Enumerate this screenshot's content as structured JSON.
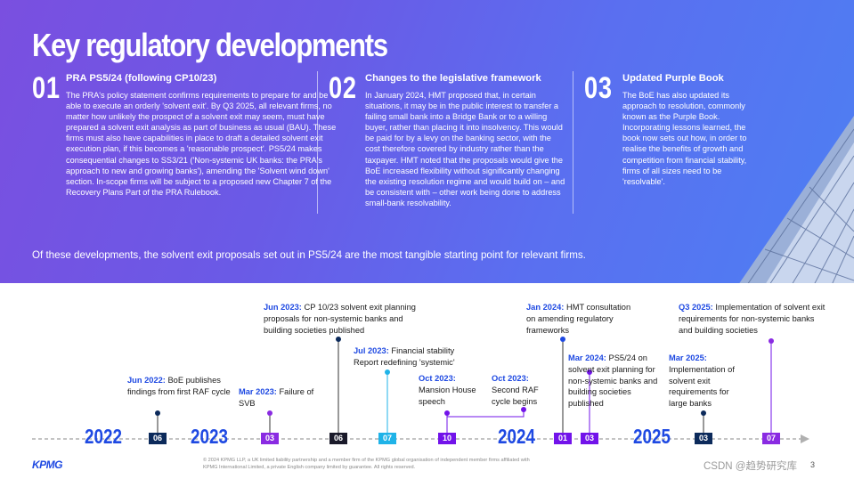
{
  "title": "Key regulatory developments",
  "columns": [
    {
      "num": "01",
      "heading": "PRA PS5/24 (following CP10/23)",
      "text": "The PRA's policy statement confirms requirements to prepare for and be able to execute an orderly 'solvent exit'. By Q3 2025, all relevant firms, no matter how unlikely the prospect of a solvent exit may seem, must have prepared a solvent exit analysis as part of business as usual (BAU). These firms must also have capabilities in place to draft a detailed solvent exit execution plan, if this becomes a 'reasonable prospect'. PS5/24 makes consequential changes to SS3/21 ('Non-systemic UK banks: the PRA's approach to new and growing banks'), amending the 'Solvent wind down' section. In-scope firms will be subject to a proposed new Chapter 7 of the Recovery Plans Part of the PRA Rulebook."
    },
    {
      "num": "02",
      "heading": "Changes to the legislative framework",
      "text": "In January 2024, HMT proposed that, in certain situations, it may be in the public interest to transfer a failing small bank into a Bridge Bank or to a willing buyer, rather than placing it into insolvency. This would be paid for by a levy on the banking sector, with the cost therefore covered by industry rather than the taxpayer. HMT noted that the proposals would give the BoE increased flexibility without significantly changing the existing resolution regime and would build on – and be consistent with – other work being done to address small-bank resolvability."
    },
    {
      "num": "03",
      "heading": "Updated Purple Book",
      "text": "The BoE has also updated its approach to resolution, commonly known as the Purple Book. Incorporating lessons learned, the book now sets out how, in order to realise the benefits of growth and competition from financial stability, firms of all sizes need to be 'resolvable'."
    }
  ],
  "summary": "Of these developments, the solvent exit proposals set out in PS5/24 are the most tangible starting point for relevant firms.",
  "timeline": {
    "years": [
      "2022",
      "2023",
      "2024",
      "2025"
    ],
    "months": [
      "06",
      "03",
      "06",
      "07",
      "10",
      "01",
      "03",
      "03",
      "07"
    ],
    "events": [
      {
        "date": "Jun 2022:",
        "text": "BoE publishes findings from first RAF cycle"
      },
      {
        "date": "Mar 2023:",
        "text": "Failure of SVB"
      },
      {
        "date": "Jun 2023:",
        "text": "CP 10/23 solvent exit planning proposals for non-systemic banks and building societies published"
      },
      {
        "date": "Jul 2023:",
        "text": "Financial stability Report redefining 'systemic'"
      },
      {
        "date": "Oct 2023:",
        "text": "Mansion House speech"
      },
      {
        "date": "Oct 2023:",
        "text": "Second RAF cycle begins"
      },
      {
        "date": "Jan 2024:",
        "text": "HMT consultation on amending regulatory frameworks"
      },
      {
        "date": "Mar 2024:",
        "text": "PS5/24 on solvent exit planning for non-systemic banks and building societies published"
      },
      {
        "date": "Mar 2025:",
        "text": "Implementation of solvent exit requirements for large banks"
      },
      {
        "date": "Q3 2025:",
        "text": "Implementation of solvent exit requirements for non-systemic banks and building societies"
      }
    ]
  },
  "footer": {
    "logo": "KPMG",
    "legal": "© 2024 KPMG LLP, a UK limited liability partnership and a member firm of the KPMG global organisation of independent member firms affiliated with KPMG International Limited, a private English company limited by guarantee. All rights reserved.",
    "page": "3",
    "watermark": "CSDN @趋势研究库"
  },
  "colors": {
    "brand_blue": "#1e49e2",
    "navy": "#0c2a5b",
    "cyan": "#1fb3e8",
    "purple": "#7213ea",
    "violet": "#8a2be2"
  }
}
